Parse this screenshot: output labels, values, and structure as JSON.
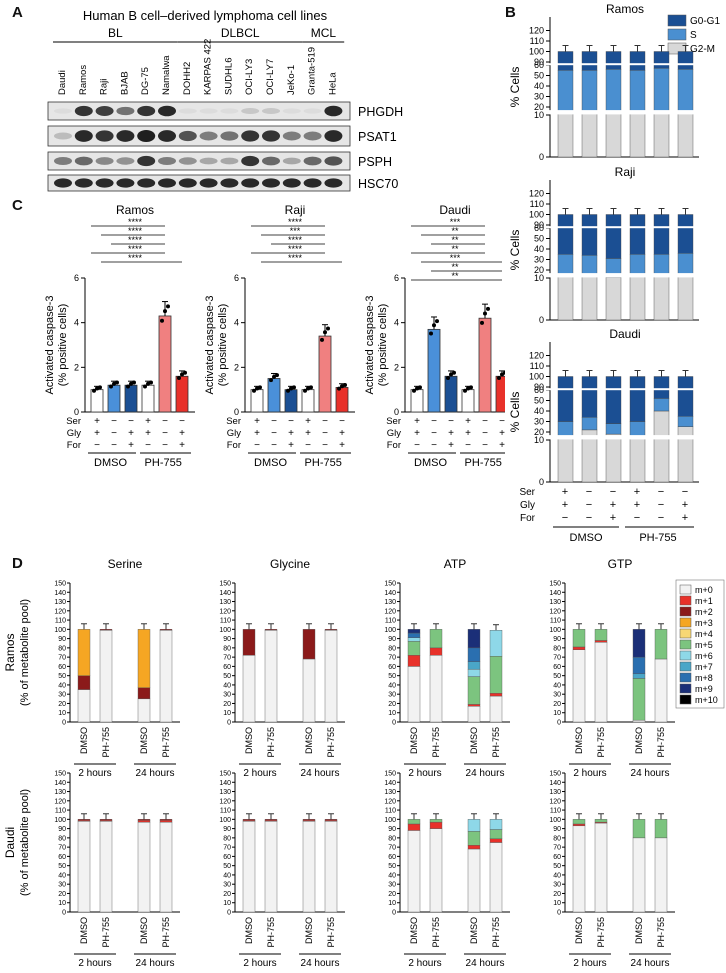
{
  "panels": {
    "A": "A",
    "B": "B",
    "C": "C",
    "D": "D"
  },
  "panelA": {
    "title": "Human B cell–derived lymphoma cell lines",
    "groups": [
      "BL",
      "DLBCL",
      "MCL"
    ],
    "lanes": [
      "Daudi",
      "Ramos",
      "Raji",
      "BJAB",
      "DG-75",
      "Namalwa",
      "DOHH2",
      "KARPAS 422",
      "SUDHL6",
      "OCI-LY3",
      "OCI-LY7",
      "JeKo-1",
      "Granta-519",
      "HeLa"
    ],
    "proteins": [
      "PHGDH",
      "PSAT1",
      "PSPH",
      "HSC70"
    ],
    "intensities": [
      [
        0.05,
        0.85,
        0.8,
        0.55,
        0.85,
        0.9,
        0.05,
        0.05,
        0.05,
        0.15,
        0.15,
        0.05,
        0.05,
        0.9
      ],
      [
        0.2,
        0.9,
        0.85,
        0.9,
        0.95,
        0.9,
        0.7,
        0.5,
        0.55,
        0.85,
        0.85,
        0.5,
        0.5,
        0.9
      ],
      [
        0.5,
        0.6,
        0.45,
        0.4,
        0.85,
        0.5,
        0.4,
        0.3,
        0.3,
        0.85,
        0.6,
        0.3,
        0.6,
        0.7
      ],
      [
        0.9,
        0.9,
        0.9,
        0.9,
        0.9,
        0.9,
        0.9,
        0.9,
        0.9,
        0.9,
        0.9,
        0.9,
        0.9,
        0.9
      ]
    ]
  },
  "panelB": {
    "ylabel": "% Cells",
    "legend": [
      "G0-G1",
      "S",
      "G2-M"
    ],
    "colors": [
      "#1b4f93",
      "#4a8fd0",
      "#d8d8d8"
    ],
    "ticks_low": [
      "0",
      "10"
    ],
    "ticks_mid": [
      "20",
      "30",
      "40",
      "50",
      "60"
    ],
    "ticks_high": [
      "90",
      "100",
      "110",
      "120"
    ],
    "titles": [
      "Ramos",
      "Raji",
      "Daudi"
    ],
    "conditions": {
      "ser": [
        "+",
        "−",
        "−",
        "+",
        "−",
        "−"
      ],
      "gly": [
        "+",
        "−",
        "+",
        "+",
        "−",
        "+"
      ],
      "for": [
        "−",
        "−",
        "+",
        "−",
        "−",
        "+"
      ]
    },
    "row_labels": [
      "Ser",
      "Gly",
      "For"
    ],
    "group_labels": [
      "DMSO",
      "PH-755"
    ]
  },
  "chart_data": [
    {
      "type": "bar",
      "title": "Ramos",
      "ylabel": "% Cells",
      "series": [
        {
          "name": "G2-M",
          "values": [
            15,
            15,
            14,
            15,
            16,
            16
          ]
        },
        {
          "name": "S",
          "values": [
            40,
            40,
            42,
            40,
            41,
            40
          ]
        },
        {
          "name": "G0-G1",
          "values": [
            45,
            45,
            44,
            45,
            43,
            44
          ]
        }
      ]
    },
    {
      "type": "bar",
      "title": "Raji",
      "ylabel": "% Cells",
      "series": [
        {
          "name": "G2-M",
          "values": [
            15,
            14,
            13,
            15,
            15,
            16
          ]
        },
        {
          "name": "S",
          "values": [
            20,
            20,
            18,
            20,
            20,
            20
          ]
        },
        {
          "name": "G0-G1",
          "values": [
            65,
            66,
            69,
            65,
            65,
            64
          ]
        }
      ]
    },
    {
      "type": "bar",
      "title": "Daudi",
      "ylabel": "% Cells",
      "series": [
        {
          "name": "G2-M",
          "values": [
            15,
            22,
            18,
            15,
            40,
            25
          ]
        },
        {
          "name": "S",
          "values": [
            15,
            12,
            10,
            15,
            12,
            10
          ]
        },
        {
          "name": "G0-G1",
          "values": [
            70,
            66,
            72,
            70,
            48,
            65
          ]
        }
      ]
    },
    {
      "type": "bar",
      "title": "Ramos",
      "ylabel": "Activated caspase-3 (% positive cells)",
      "ylim": [
        0,
        6
      ],
      "categories": [
        "1",
        "2",
        "3",
        "4",
        "5",
        "6"
      ],
      "values": [
        1.0,
        1.2,
        1.2,
        1.2,
        4.3,
        1.6
      ]
    },
    {
      "type": "bar",
      "title": "Raji",
      "ylabel": "Activated caspase-3 (% positive cells)",
      "ylim": [
        0,
        6
      ],
      "categories": [
        "1",
        "2",
        "3",
        "4",
        "5",
        "6"
      ],
      "values": [
        1.0,
        1.5,
        1.0,
        1.0,
        3.4,
        1.1
      ]
    },
    {
      "type": "bar",
      "title": "Daudi",
      "ylabel": "Activated caspase-3 (% positive cells)",
      "ylim": [
        0,
        6
      ],
      "categories": [
        "1",
        "2",
        "3",
        "4",
        "5",
        "6"
      ],
      "values": [
        1.0,
        3.7,
        1.6,
        1.0,
        4.2,
        1.6
      ]
    }
  ],
  "panelC": {
    "ylabel1": "Activated caspase-3",
    "ylabel2": "(% positive cells)",
    "yticks": [
      "0",
      "2",
      "4",
      "6"
    ],
    "titles": [
      "Ramos",
      "Raji",
      "Daudi"
    ],
    "colors": [
      "#ffffff",
      "#4a90d9",
      "#1b4f93",
      "#ffffff",
      "#f08080",
      "#e8312a"
    ],
    "sig": [
      [
        "****",
        "****",
        "****",
        "****",
        "****"
      ],
      [
        "****",
        "***",
        "****",
        "****",
        "****"
      ],
      [
        "***",
        "**",
        "**",
        "**",
        "***",
        "**",
        "**"
      ]
    ],
    "row_labels": [
      "Ser",
      "Gly",
      "For"
    ],
    "conditions": {
      "ser": [
        "+",
        "−",
        "−",
        "+",
        "−",
        "−"
      ],
      "gly": [
        "+",
        "−",
        "+",
        "+",
        "−",
        "+"
      ],
      "for": [
        "−",
        "−",
        "+",
        "−",
        "−",
        "+"
      ]
    },
    "group_labels": [
      "DMSO",
      "PH-755"
    ]
  },
  "panelD": {
    "titles": [
      "Serine",
      "Glycine",
      "ATP",
      "GTP"
    ],
    "row_labels": [
      "Ramos",
      "Daudi"
    ],
    "ylabel": "(% of metabolite pool)",
    "yticks": [
      "0",
      "10",
      "20",
      "30",
      "40",
      "50",
      "60",
      "70",
      "80",
      "90",
      "100",
      "110",
      "120",
      "130",
      "140",
      "150"
    ],
    "treatments": [
      "DMSO",
      "PH-755",
      "DMSO",
      "PH-755"
    ],
    "times": [
      "2 hours",
      "24 hours"
    ],
    "legend": [
      "m+0",
      "m+1",
      "m+2",
      "m+3",
      "m+4",
      "m+5",
      "m+6",
      "m+7",
      "m+8",
      "m+9",
      "m+10"
    ],
    "legend_colors": [
      "#f2f2f2",
      "#e8312a",
      "#8b1a1a",
      "#f5a623",
      "#f7d774",
      "#7cc47f",
      "#8ed8e8",
      "#4aa6c8",
      "#2a6fb0",
      "#1b2f78",
      "#000000"
    ],
    "stacks": [
      [
        [
          [
            35,
            0,
            15,
            50
          ]
        ],
        [
          [
            99,
            0,
            1
          ]
        ],
        [
          [
            25,
            0,
            12,
            63
          ]
        ],
        [
          [
            99,
            0,
            1
          ]
        ]
      ],
      [
        [
          [
            72,
            0,
            28
          ]
        ],
        [
          [
            99,
            0,
            1
          ]
        ],
        [
          [
            68,
            0,
            32
          ]
        ],
        [
          [
            99,
            0,
            1
          ]
        ]
      ],
      [
        [
          [
            60,
            12,
            0,
            0,
            0,
            15,
            4,
            0,
            5,
            4
          ]
        ],
        [
          [
            72,
            8,
            0,
            0,
            0,
            20
          ]
        ],
        [
          [
            17,
            2,
            0,
            0,
            0,
            30,
            8,
            8,
            15,
            20
          ]
        ],
        [
          [
            28,
            3,
            0,
            0,
            0,
            40,
            28
          ]
        ]
      ],
      [
        [
          [
            78,
            3,
            0,
            0,
            0,
            19
          ]
        ],
        [
          [
            86,
            2,
            0,
            0,
            0,
            12
          ]
        ],
        [
          [
            2,
            0,
            0,
            0,
            0,
            45,
            0,
            5,
            18,
            30
          ]
        ],
        [
          [
            68,
            0,
            0,
            0,
            0,
            32
          ]
        ]
      ],
      [
        [
          [
            98,
            1,
            1
          ]
        ],
        [
          [
            98,
            1,
            1
          ]
        ],
        [
          [
            97,
            2,
            1
          ]
        ],
        [
          [
            97,
            2,
            1
          ]
        ]
      ],
      [
        [
          [
            98,
            1,
            1
          ]
        ],
        [
          [
            98,
            1,
            1
          ]
        ],
        [
          [
            98,
            1,
            1
          ]
        ],
        [
          [
            98,
            1,
            1
          ]
        ]
      ],
      [
        [
          [
            88,
            7,
            0,
            0,
            0,
            5
          ]
        ],
        [
          [
            90,
            7,
            0,
            0,
            0,
            3
          ]
        ],
        [
          [
            68,
            4,
            0,
            0,
            0,
            15,
            13
          ]
        ],
        [
          [
            75,
            4,
            0,
            0,
            0,
            10,
            11
          ]
        ]
      ],
      [
        [
          [
            93,
            2,
            0,
            0,
            0,
            5
          ]
        ],
        [
          [
            96,
            1,
            0,
            0,
            0,
            3
          ]
        ],
        [
          [
            80,
            0,
            0,
            0,
            0,
            20
          ]
        ],
        [
          [
            80,
            0,
            0,
            0,
            0,
            20
          ]
        ]
      ]
    ]
  }
}
